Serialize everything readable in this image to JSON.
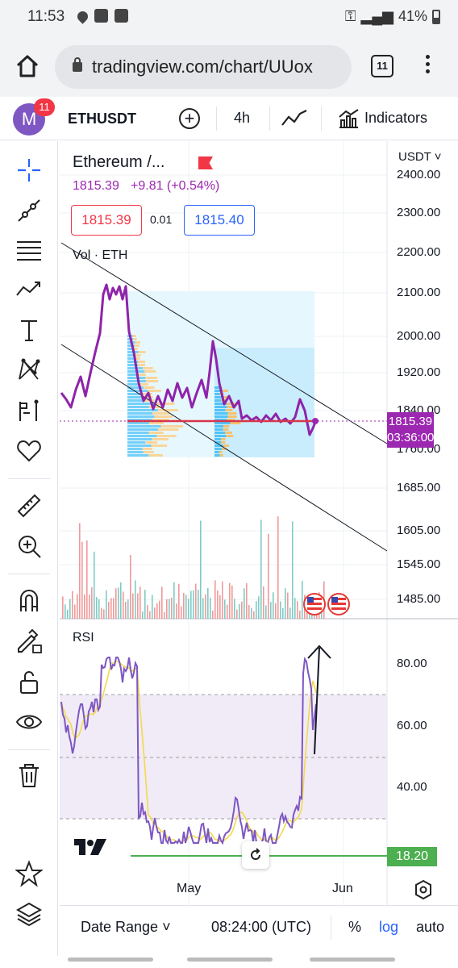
{
  "status_bar": {
    "time": "11:53",
    "battery": "41%"
  },
  "browser": {
    "url": "tradingview.com/chart/UUox",
    "tab_count": "11"
  },
  "toolbar": {
    "avatar_letter": "M",
    "notifications": "11",
    "symbol": "ETHUSDT",
    "interval": "4h",
    "indicators_label": "Indicators"
  },
  "legend": {
    "title": "Ethereum /...",
    "price": "1815.39",
    "change": "+9.81 (+0.54%)",
    "sell": "1815.39",
    "spread": "0.01",
    "buy": "1815.40",
    "volume_label": "Vol · ETH"
  },
  "price_axis": {
    "currency": "USDT",
    "ticks": [
      "2400.00",
      "2300.00",
      "2200.00",
      "2100.00",
      "2000.00",
      "1920.00",
      "1840.00",
      "1760.00",
      "1685.00",
      "1605.00",
      "1545.00",
      "1485.00"
    ],
    "current_price": "1815.39",
    "countdown": "03:36:00"
  },
  "rsi": {
    "label": "RSI",
    "ticks": [
      "80.00",
      "60.00",
      "40.00"
    ],
    "value": "18.20"
  },
  "time_axis": {
    "labels": [
      "May",
      "Jun"
    ]
  },
  "bottom": {
    "date_range": "Date Range",
    "clock": "08:24:00 (UTC)",
    "percent": "%",
    "log": "log",
    "auto": "auto"
  },
  "colors": {
    "price_line": "#9c27b0",
    "volume_up": "#26a69a",
    "volume_down": "#ef5350",
    "rsi_line": "#7e57c2",
    "rsi_ma": "#f5d94a",
    "rsi_band": "#ede7f6",
    "horizontal_line": "#e53935",
    "rsi_level": "#4caf50"
  }
}
